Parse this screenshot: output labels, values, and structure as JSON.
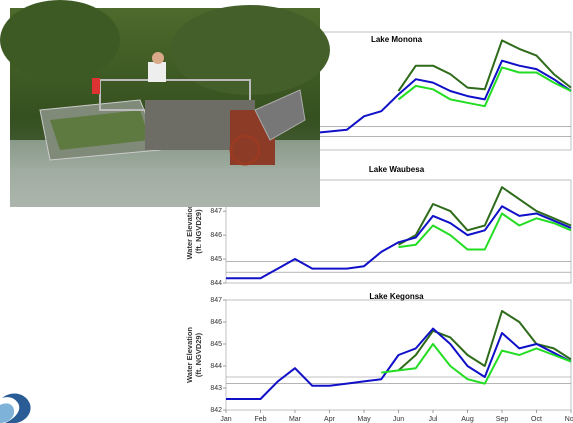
{
  "chart_data": [
    {
      "type": "line",
      "title": "Lake Monona",
      "x": [
        0,
        0.5,
        1,
        1.5,
        2,
        2.5,
        3,
        3.5,
        4,
        4.5,
        5,
        5.5,
        6,
        6.5,
        7,
        7.5,
        8,
        8.5,
        9,
        9.5,
        10
      ],
      "xlim": [
        0,
        10
      ],
      "ylim": [
        843,
        850
      ],
      "hlines": [
        844.4,
        843.8
      ],
      "series": [
        {
          "color": "#2e6b1a",
          "values": [
            null,
            null,
            null,
            null,
            null,
            null,
            null,
            null,
            null,
            null,
            846.5,
            848.0,
            848.0,
            847.5,
            846.7,
            846.6,
            849.5,
            849.0,
            848.6,
            847.5,
            846.7
          ]
        },
        {
          "color": "#1010c8",
          "values": [
            843.6,
            843.6,
            843.7,
            843.8,
            843.9,
            844.0,
            844.1,
            844.2,
            845.0,
            845.3,
            846.3,
            847.2,
            847.0,
            846.5,
            846.2,
            846.0,
            848.3,
            848.0,
            847.8,
            847.2,
            846.5
          ]
        },
        {
          "color": "#22dd22",
          "values": [
            null,
            null,
            null,
            null,
            null,
            null,
            null,
            null,
            null,
            null,
            846.0,
            846.8,
            846.6,
            846.0,
            845.8,
            845.6,
            847.9,
            847.6,
            847.6,
            847.0,
            846.5
          ]
        }
      ]
    },
    {
      "type": "line",
      "title": "Lake Waubesa",
      "y_label": [
        "Water Elevation",
        "(ft. NGVD29)"
      ],
      "x": [
        0,
        0.5,
        1,
        1.5,
        2,
        2.5,
        3,
        3.5,
        4,
        4.5,
        5,
        5.5,
        6,
        6.5,
        7,
        7.5,
        8,
        8.5,
        9,
        9.5,
        10
      ],
      "xlim": [
        0,
        10
      ],
      "ylim": [
        844,
        848.3
      ],
      "yticks": [
        844,
        845,
        846,
        847
      ],
      "hlines": [
        844.9,
        844.45
      ],
      "series": [
        {
          "color": "#2e6b1a",
          "values": [
            null,
            null,
            null,
            null,
            null,
            null,
            null,
            null,
            null,
            null,
            845.6,
            846.0,
            847.3,
            847.0,
            846.2,
            846.4,
            848.0,
            847.5,
            847.0,
            846.7,
            846.4
          ]
        },
        {
          "color": "#1010c8",
          "values": [
            844.2,
            844.2,
            844.2,
            844.6,
            845.0,
            844.6,
            844.6,
            844.6,
            844.7,
            845.3,
            845.7,
            845.9,
            846.8,
            846.5,
            846.0,
            846.2,
            847.2,
            846.8,
            846.9,
            846.6,
            846.3
          ]
        },
        {
          "color": "#22dd22",
          "values": [
            null,
            null,
            null,
            null,
            null,
            null,
            null,
            null,
            null,
            null,
            845.5,
            845.6,
            846.4,
            846.0,
            845.4,
            845.4,
            846.9,
            846.4,
            846.7,
            846.5,
            846.2
          ]
        }
      ]
    },
    {
      "type": "line",
      "title": "Lake Kegonsa",
      "y_label": [
        "Water Elevation",
        "(ft. NGVD29)"
      ],
      "x": [
        0,
        0.5,
        1,
        1.5,
        2,
        2.5,
        3,
        3.5,
        4,
        4.5,
        5,
        5.5,
        6,
        6.5,
        7,
        7.5,
        8,
        8.5,
        9,
        9.5,
        10
      ],
      "xlim": [
        0,
        10
      ],
      "ylim": [
        842,
        847
      ],
      "yticks": [
        842,
        843,
        844,
        845,
        846,
        847
      ],
      "hlines": [
        843.5,
        843.2
      ],
      "xticks": [
        {
          "value": 0,
          "label": "Jan"
        },
        {
          "value": 1,
          "label": "Feb"
        },
        {
          "value": 2,
          "label": "Mar"
        },
        {
          "value": 3,
          "label": "Apr"
        },
        {
          "value": 4,
          "label": "May"
        },
        {
          "value": 5,
          "label": "Jun"
        },
        {
          "value": 6,
          "label": "Jul"
        },
        {
          "value": 7,
          "label": "Aug"
        },
        {
          "value": 8,
          "label": "Sep"
        },
        {
          "value": 9,
          "label": "Oct"
        },
        {
          "value": 10,
          "label": "Nov"
        }
      ],
      "series": [
        {
          "color": "#2e6b1a",
          "values": [
            null,
            null,
            null,
            null,
            null,
            null,
            null,
            null,
            null,
            null,
            843.8,
            844.5,
            845.6,
            845.3,
            844.5,
            844.0,
            846.5,
            846.0,
            845.0,
            844.8,
            844.3
          ]
        },
        {
          "color": "#1010c8",
          "values": [
            842.5,
            842.5,
            842.5,
            843.3,
            843.9,
            843.1,
            843.1,
            843.2,
            843.3,
            843.4,
            844.5,
            844.8,
            845.7,
            845.0,
            844.0,
            843.5,
            845.5,
            844.8,
            845.0,
            844.6,
            844.2
          ]
        },
        {
          "color": "#22dd22",
          "values": [
            null,
            null,
            null,
            null,
            null,
            null,
            null,
            null,
            null,
            843.7,
            843.8,
            843.9,
            845.0,
            844.0,
            843.4,
            843.2,
            844.7,
            844.5,
            844.8,
            844.5,
            844.2
          ]
        }
      ]
    }
  ]
}
